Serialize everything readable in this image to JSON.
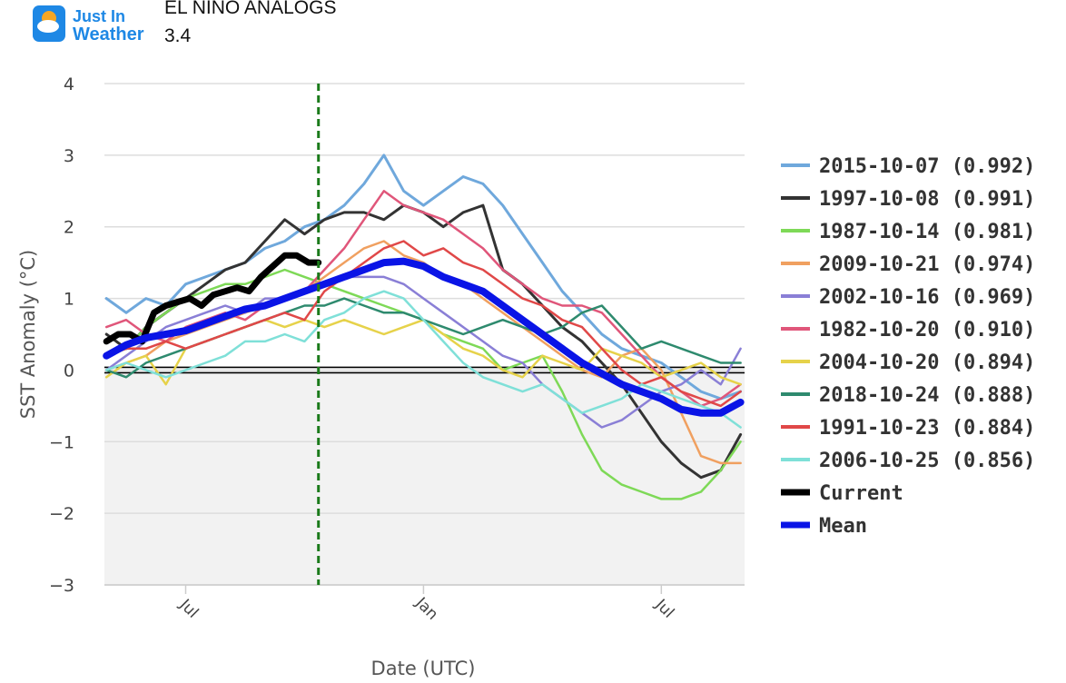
{
  "logo": {
    "line1": "Just In",
    "line2": "Weather"
  },
  "header": {
    "title_line1": "EL NINO ANALOGS",
    "title_line2": "3.4"
  },
  "colors": {
    "plot_band": "#f2f2f2",
    "gridline": "#dddddd",
    "zero_line": "#000000",
    "today_marker": "#1a7a1a",
    "current": "#000000",
    "mean": "#0a14e6",
    "logo_blue": "#1e88e5",
    "logo_orange": "#f6a623"
  },
  "chart_data": {
    "type": "line",
    "xlabel": "Date (UTC)",
    "ylabel": "SST Anomaly (°C)",
    "ylim": [
      -3,
      4
    ],
    "y_ticks": [
      {
        "value": 4,
        "label": "4"
      },
      {
        "value": 3,
        "label": "3"
      },
      {
        "value": 2,
        "label": "2"
      },
      {
        "value": 1,
        "label": "1"
      },
      {
        "value": 0,
        "label": "0"
      },
      {
        "value": -1,
        "label": "−1"
      },
      {
        "value": -2,
        "label": "−2"
      },
      {
        "value": -3,
        "label": "−3"
      }
    ],
    "x_unit": "months since Apr 1 (year 0)",
    "xlim": [
      1.95,
      18.1
    ],
    "x_ticks": [
      {
        "value": 4,
        "label": "Jul"
      },
      {
        "value": 10,
        "label": "Jan"
      },
      {
        "value": 16,
        "label": "Jul"
      }
    ],
    "today_marker_x": 7.35,
    "shaded_band": [
      -3,
      0
    ],
    "legend": {
      "position": "right"
    },
    "series": [
      {
        "name": "2015-10-07 (0.992)",
        "color": "#6fa8dc",
        "width": 3,
        "x": [
          2,
          2.5,
          3,
          3.5,
          4,
          4.5,
          5,
          5.5,
          6,
          6.5,
          7,
          7.5,
          8,
          8.5,
          9,
          9.5,
          10,
          10.5,
          11,
          11.5,
          12,
          12.5,
          13,
          13.5,
          14,
          14.5,
          15,
          15.5,
          16,
          16.5,
          17,
          17.5,
          18
        ],
        "y": [
          1.0,
          0.8,
          1.0,
          0.9,
          1.2,
          1.3,
          1.4,
          1.5,
          1.7,
          1.8,
          2.0,
          2.1,
          2.3,
          2.6,
          3.0,
          2.5,
          2.3,
          2.5,
          2.7,
          2.6,
          2.3,
          1.9,
          1.5,
          1.1,
          0.8,
          0.5,
          0.3,
          0.2,
          0.1,
          -0.1,
          -0.3,
          -0.4,
          -0.3
        ]
      },
      {
        "name": "1997-10-08 (0.991)",
        "color": "#333333",
        "width": 3,
        "x": [
          2,
          2.5,
          3,
          3.5,
          4,
          4.5,
          5,
          5.5,
          6,
          6.5,
          7,
          7.5,
          8,
          8.5,
          9,
          9.5,
          10,
          10.5,
          11,
          11.5,
          12,
          12.5,
          13,
          13.5,
          14,
          14.5,
          15,
          15.5,
          16,
          16.5,
          17,
          17.5,
          18
        ],
        "y": [
          0.5,
          0.3,
          0.6,
          0.8,
          1.0,
          1.2,
          1.4,
          1.5,
          1.8,
          2.1,
          1.9,
          2.1,
          2.2,
          2.2,
          2.1,
          2.3,
          2.2,
          2.0,
          2.2,
          2.3,
          1.4,
          1.2,
          0.9,
          0.6,
          0.4,
          0.1,
          -0.2,
          -0.6,
          -1.0,
          -1.3,
          -1.5,
          -1.4,
          -0.9
        ]
      },
      {
        "name": "1987-10-14 (0.981)",
        "color": "#7ed957",
        "width": 2.5,
        "x": [
          2,
          2.5,
          3,
          3.5,
          4,
          4.5,
          5,
          5.5,
          6,
          6.5,
          7,
          7.5,
          8,
          8.5,
          9,
          9.5,
          10,
          10.5,
          11,
          11.5,
          12,
          12.5,
          13,
          13.5,
          14,
          14.5,
          15,
          15.5,
          16,
          16.5,
          17,
          17.5,
          18
        ],
        "y": [
          0.2,
          0.3,
          0.6,
          0.8,
          1.0,
          1.1,
          1.2,
          1.2,
          1.3,
          1.4,
          1.3,
          1.2,
          1.1,
          1.0,
          0.9,
          0.8,
          0.7,
          0.5,
          0.4,
          0.3,
          0.0,
          0.1,
          0.2,
          -0.3,
          -0.9,
          -1.4,
          -1.6,
          -1.7,
          -1.8,
          -1.8,
          -1.7,
          -1.4,
          -1.0
        ]
      },
      {
        "name": "2009-10-21 (0.974)",
        "color": "#f0a060",
        "width": 2.5,
        "x": [
          2,
          2.5,
          3,
          3.5,
          4,
          4.5,
          5,
          5.5,
          6,
          6.5,
          7,
          7.5,
          8,
          8.5,
          9,
          9.5,
          10,
          10.5,
          11,
          11.5,
          12,
          12.5,
          13,
          13.5,
          14,
          14.5,
          15,
          15.5,
          16,
          16.5,
          17,
          17.5,
          18
        ],
        "y": [
          0.0,
          0.1,
          0.2,
          0.4,
          0.5,
          0.6,
          0.7,
          0.8,
          0.9,
          1.0,
          1.1,
          1.3,
          1.5,
          1.7,
          1.8,
          1.6,
          1.5,
          1.3,
          1.2,
          1.0,
          0.8,
          0.6,
          0.4,
          0.2,
          0.0,
          -0.1,
          0.2,
          0.3,
          0.0,
          -0.6,
          -1.2,
          -1.3,
          -1.3
        ]
      },
      {
        "name": "2002-10-16 (0.969)",
        "color": "#8a7fd6",
        "width": 2.5,
        "x": [
          2,
          2.5,
          3,
          3.5,
          4,
          4.5,
          5,
          5.5,
          6,
          6.5,
          7,
          7.5,
          8,
          8.5,
          9,
          9.5,
          10,
          10.5,
          11,
          11.5,
          12,
          12.5,
          13,
          13.5,
          14,
          14.5,
          15,
          15.5,
          16,
          16.5,
          17,
          17.5,
          18
        ],
        "y": [
          0.0,
          0.2,
          0.4,
          0.6,
          0.7,
          0.8,
          0.9,
          0.8,
          1.0,
          1.0,
          1.1,
          1.2,
          1.3,
          1.3,
          1.3,
          1.2,
          1.0,
          0.8,
          0.6,
          0.4,
          0.2,
          0.1,
          -0.2,
          -0.4,
          -0.6,
          -0.8,
          -0.7,
          -0.5,
          -0.3,
          -0.2,
          0.0,
          -0.2,
          0.3
        ]
      },
      {
        "name": "1982-10-20 (0.910)",
        "color": "#e0567a",
        "width": 2.5,
        "x": [
          2,
          2.5,
          3,
          3.5,
          4,
          4.5,
          5,
          5.5,
          6,
          6.5,
          7,
          7.5,
          8,
          8.5,
          9,
          9.5,
          10,
          10.5,
          11,
          11.5,
          12,
          12.5,
          13,
          13.5,
          14,
          14.5,
          15,
          15.5,
          16,
          16.5,
          17,
          17.5,
          18
        ],
        "y": [
          0.6,
          0.7,
          0.5,
          0.4,
          0.6,
          0.7,
          0.8,
          0.7,
          0.9,
          1.0,
          1.1,
          1.4,
          1.7,
          2.1,
          2.5,
          2.3,
          2.2,
          2.1,
          1.9,
          1.7,
          1.4,
          1.2,
          1.0,
          0.9,
          0.9,
          0.8,
          0.5,
          0.2,
          -0.1,
          -0.3,
          -0.5,
          -0.4,
          -0.2
        ]
      },
      {
        "name": "2004-10-20 (0.894)",
        "color": "#e6d24a",
        "width": 2.5,
        "x": [
          2,
          2.5,
          3,
          3.5,
          4,
          4.5,
          5,
          5.5,
          6,
          6.5,
          7,
          7.5,
          8,
          8.5,
          9,
          9.5,
          10,
          10.5,
          11,
          11.5,
          12,
          12.5,
          13,
          13.5,
          14,
          14.5,
          15,
          15.5,
          16,
          16.5,
          17,
          17.5,
          18
        ],
        "y": [
          -0.1,
          0.1,
          0.2,
          -0.2,
          0.3,
          0.4,
          0.5,
          0.6,
          0.7,
          0.6,
          0.7,
          0.6,
          0.7,
          0.6,
          0.5,
          0.6,
          0.7,
          0.5,
          0.3,
          0.2,
          0.0,
          -0.1,
          0.2,
          0.1,
          0.0,
          0.3,
          0.2,
          0.1,
          -0.1,
          0.0,
          0.1,
          -0.1,
          -0.2
        ]
      },
      {
        "name": "2018-10-24 (0.888)",
        "color": "#2e8a6e",
        "width": 2.5,
        "x": [
          2,
          2.5,
          3,
          3.5,
          4,
          4.5,
          5,
          5.5,
          6,
          6.5,
          7,
          7.5,
          8,
          8.5,
          9,
          9.5,
          10,
          10.5,
          11,
          11.5,
          12,
          12.5,
          13,
          13.5,
          14,
          14.5,
          15,
          15.5,
          16,
          16.5,
          17,
          17.5,
          18
        ],
        "y": [
          0.0,
          -0.1,
          0.1,
          0.2,
          0.3,
          0.4,
          0.5,
          0.6,
          0.7,
          0.8,
          0.9,
          0.9,
          1.0,
          0.9,
          0.8,
          0.8,
          0.7,
          0.6,
          0.5,
          0.6,
          0.7,
          0.6,
          0.5,
          0.6,
          0.8,
          0.9,
          0.6,
          0.3,
          0.4,
          0.3,
          0.2,
          0.1,
          0.1
        ]
      },
      {
        "name": "1991-10-23 (0.884)",
        "color": "#e04848",
        "width": 2.5,
        "x": [
          2,
          2.5,
          3,
          3.5,
          4,
          4.5,
          5,
          5.5,
          6,
          6.5,
          7,
          7.5,
          8,
          8.5,
          9,
          9.5,
          10,
          10.5,
          11,
          11.5,
          12,
          12.5,
          13,
          13.5,
          14,
          14.5,
          15,
          15.5,
          16,
          16.5,
          17,
          17.5,
          18
        ],
        "y": [
          0.2,
          0.3,
          0.3,
          0.4,
          0.3,
          0.4,
          0.5,
          0.6,
          0.7,
          0.8,
          0.7,
          1.1,
          1.3,
          1.5,
          1.7,
          1.8,
          1.6,
          1.7,
          1.5,
          1.4,
          1.2,
          1.0,
          0.9,
          0.7,
          0.6,
          0.3,
          0.0,
          -0.2,
          -0.1,
          -0.3,
          -0.4,
          -0.5,
          -0.3
        ]
      },
      {
        "name": "2006-10-25 (0.856)",
        "color": "#7fe0d8",
        "width": 2.5,
        "x": [
          2,
          2.5,
          3,
          3.5,
          4,
          4.5,
          5,
          5.5,
          6,
          6.5,
          7,
          7.5,
          8,
          8.5,
          9,
          9.5,
          10,
          10.5,
          11,
          11.5,
          12,
          12.5,
          13,
          13.5,
          14,
          14.5,
          15,
          15.5,
          16,
          16.5,
          17,
          17.5,
          18
        ],
        "y": [
          0.0,
          0.1,
          0.0,
          -0.1,
          0.0,
          0.1,
          0.2,
          0.4,
          0.4,
          0.5,
          0.4,
          0.7,
          0.8,
          1.0,
          1.1,
          1.0,
          0.7,
          0.4,
          0.1,
          -0.1,
          -0.2,
          -0.3,
          -0.2,
          -0.4,
          -0.6,
          -0.5,
          -0.4,
          -0.2,
          -0.3,
          -0.4,
          -0.5,
          -0.6,
          -0.8
        ]
      },
      {
        "name": "Current",
        "color": "#000000",
        "width": 7,
        "x": [
          2,
          2.3,
          2.6,
          2.9,
          3.2,
          3.5,
          3.8,
          4.1,
          4.4,
          4.7,
          5.0,
          5.3,
          5.6,
          5.9,
          6.2,
          6.5,
          6.8,
          7.1,
          7.35
        ],
        "y": [
          0.4,
          0.5,
          0.5,
          0.4,
          0.8,
          0.9,
          0.95,
          1.0,
          0.9,
          1.05,
          1.1,
          1.15,
          1.1,
          1.3,
          1.45,
          1.6,
          1.6,
          1.5,
          1.5
        ]
      },
      {
        "name": "Mean",
        "color": "#0a14e6",
        "width": 8,
        "x": [
          2,
          2.5,
          3,
          3.5,
          4,
          4.5,
          5,
          5.5,
          6,
          6.5,
          7,
          7.5,
          8,
          8.5,
          9,
          9.5,
          10,
          10.5,
          11,
          11.5,
          12,
          12.5,
          13,
          13.5,
          14,
          14.5,
          15,
          15.5,
          16,
          16.5,
          17,
          17.5,
          18
        ],
        "y": [
          0.2,
          0.35,
          0.45,
          0.5,
          0.55,
          0.65,
          0.75,
          0.85,
          0.9,
          1.0,
          1.1,
          1.2,
          1.3,
          1.4,
          1.5,
          1.52,
          1.45,
          1.3,
          1.2,
          1.1,
          0.9,
          0.7,
          0.5,
          0.3,
          0.1,
          -0.05,
          -0.2,
          -0.3,
          -0.4,
          -0.55,
          -0.6,
          -0.6,
          -0.45
        ]
      }
    ]
  }
}
